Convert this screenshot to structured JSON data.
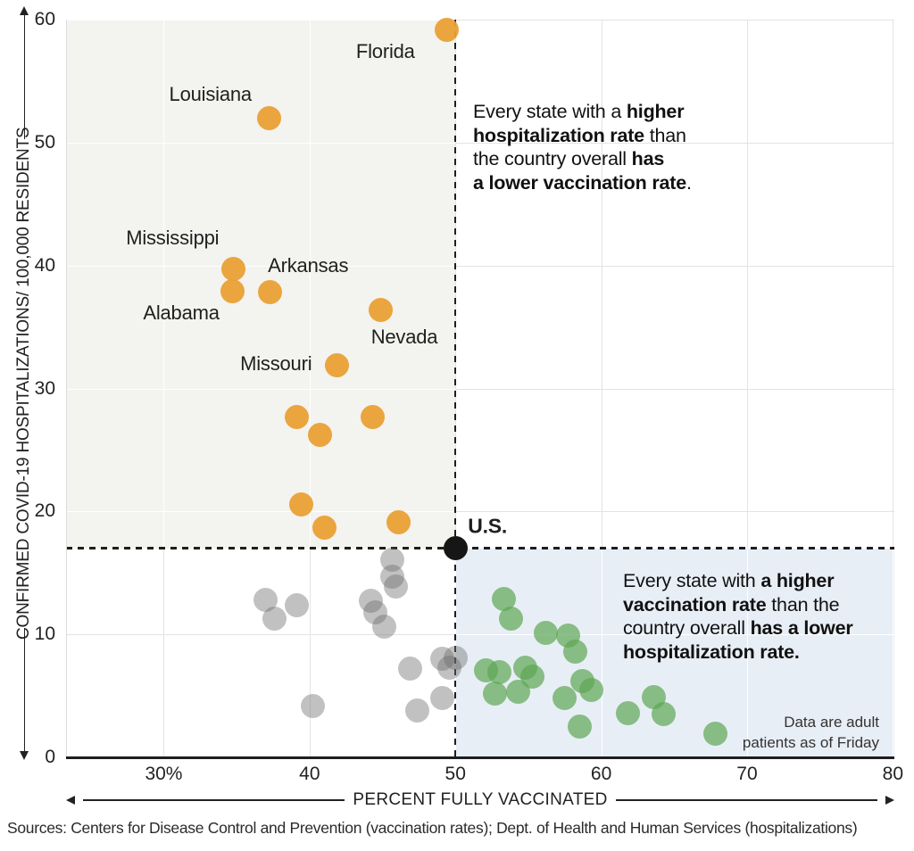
{
  "chart_data": {
    "type": "scatter",
    "xlabel": "PERCENT FULLY VACCINATED",
    "ylabel": "CONFIRMED COVID-19 HOSPITALIZATIONS/ 100,000 RESIDENTS",
    "xlim": [
      23.3,
      80.1
    ],
    "ylim": [
      0,
      60
    ],
    "grid": true,
    "x_ticks": [
      {
        "v": 30,
        "label": "30%"
      },
      {
        "v": 40,
        "label": "40"
      },
      {
        "v": 50,
        "label": "50"
      },
      {
        "v": 60,
        "label": "60"
      },
      {
        "v": 70,
        "label": "70"
      },
      {
        "v": 80,
        "label": "80"
      }
    ],
    "y_ticks": [
      {
        "v": 0,
        "label": "0"
      },
      {
        "v": 10,
        "label": "10"
      },
      {
        "v": 20,
        "label": "20"
      },
      {
        "v": 30,
        "label": "30"
      },
      {
        "v": 40,
        "label": "40"
      },
      {
        "v": 50,
        "label": "50"
      },
      {
        "v": 60,
        "label": "60"
      }
    ],
    "us_reference": {
      "x": 50,
      "y": 17,
      "label": "U.S."
    },
    "colors": {
      "orange": "rgba(233,160,52,0.95)",
      "gray": "rgba(108,108,108,0.42)",
      "green": "rgba(94,166,84,0.70)",
      "us_black": "#161616",
      "quadrant_upper_left": "#f3f3ef",
      "quadrant_lower_right": "#e8eef6",
      "gridline": "#e3e3e3",
      "dashed_line": "#1e1e1e"
    },
    "series": [
      {
        "name": "higher_hospitalization_than_us",
        "color": "rgba(233,160,52,0.95)",
        "points": [
          {
            "x": 49.4,
            "y": 59.2,
            "state": "Florida"
          },
          {
            "x": 37.2,
            "y": 52.0,
            "state": "Louisiana"
          },
          {
            "x": 34.8,
            "y": 39.7,
            "state": "Mississippi"
          },
          {
            "x": 34.7,
            "y": 37.9,
            "state": "Alabama"
          },
          {
            "x": 37.3,
            "y": 37.8,
            "state": "Arkansas"
          },
          {
            "x": 44.9,
            "y": 36.4,
            "state": "Nevada"
          },
          {
            "x": 41.9,
            "y": 31.9,
            "state": "Missouri"
          },
          {
            "x": 39.1,
            "y": 27.7
          },
          {
            "x": 40.7,
            "y": 26.2
          },
          {
            "x": 44.3,
            "y": 27.7
          },
          {
            "x": 39.4,
            "y": 20.6
          },
          {
            "x": 41.0,
            "y": 18.7
          },
          {
            "x": 46.1,
            "y": 19.1
          }
        ]
      },
      {
        "name": "lower_hospitalization_lower_vaccination",
        "color": "rgba(108,108,108,0.42)",
        "points": [
          {
            "x": 37.0,
            "y": 12.8
          },
          {
            "x": 37.6,
            "y": 11.3
          },
          {
            "x": 39.1,
            "y": 12.4
          },
          {
            "x": 44.2,
            "y": 12.7
          },
          {
            "x": 44.5,
            "y": 11.8
          },
          {
            "x": 45.1,
            "y": 10.6
          },
          {
            "x": 45.7,
            "y": 16.1
          },
          {
            "x": 45.7,
            "y": 14.7
          },
          {
            "x": 45.9,
            "y": 13.9
          },
          {
            "x": 46.9,
            "y": 7.2
          },
          {
            "x": 49.1,
            "y": 8.0
          },
          {
            "x": 50.0,
            "y": 8.1
          },
          {
            "x": 49.6,
            "y": 7.3
          },
          {
            "x": 49.1,
            "y": 4.8
          },
          {
            "x": 40.2,
            "y": 4.2
          },
          {
            "x": 47.4,
            "y": 3.8
          }
        ]
      },
      {
        "name": "higher_vaccination_than_us",
        "color": "rgba(94,166,84,0.70)",
        "points": [
          {
            "x": 53.3,
            "y": 12.9
          },
          {
            "x": 53.8,
            "y": 11.3
          },
          {
            "x": 56.2,
            "y": 10.1
          },
          {
            "x": 57.7,
            "y": 9.9
          },
          {
            "x": 58.2,
            "y": 8.6
          },
          {
            "x": 52.1,
            "y": 7.1
          },
          {
            "x": 53.0,
            "y": 6.9
          },
          {
            "x": 54.8,
            "y": 7.3
          },
          {
            "x": 55.3,
            "y": 6.6
          },
          {
            "x": 52.7,
            "y": 5.2
          },
          {
            "x": 54.3,
            "y": 5.3
          },
          {
            "x": 57.5,
            "y": 4.8
          },
          {
            "x": 58.7,
            "y": 6.2
          },
          {
            "x": 59.3,
            "y": 5.5
          },
          {
            "x": 58.5,
            "y": 2.5
          },
          {
            "x": 61.8,
            "y": 3.6
          },
          {
            "x": 63.6,
            "y": 4.9
          },
          {
            "x": 64.3,
            "y": 3.5
          },
          {
            "x": 67.8,
            "y": 1.9
          }
        ]
      }
    ],
    "labels": [
      {
        "text": "Florida",
        "x": 45.2,
        "y": 57.4,
        "bold": false
      },
      {
        "text": "Louisiana",
        "x": 33.2,
        "y": 53.9,
        "bold": false
      },
      {
        "text": "Mississippi",
        "x": 30.6,
        "y": 42.2,
        "bold": false
      },
      {
        "text": "Arkansas",
        "x": 39.9,
        "y": 40.0,
        "bold": false
      },
      {
        "text": "Alabama",
        "x": 31.2,
        "y": 36.1,
        "bold": false
      },
      {
        "text": "Nevada",
        "x": 46.5,
        "y": 34.2,
        "bold": false
      },
      {
        "text": "Missouri",
        "x": 37.7,
        "y": 32.0,
        "bold": false
      },
      {
        "text": "U.S.",
        "x": 52.2,
        "y": 18.8,
        "bold": true
      }
    ],
    "annotations": [
      {
        "id": "ann-top",
        "lines": [
          [
            {
              "t": "Every state with a ",
              "b": false
            },
            {
              "t": "higher",
              "b": true
            }
          ],
          [
            {
              "t": "hospitalization rate",
              "b": true
            },
            {
              "t": " than",
              "b": false
            }
          ],
          [
            {
              "t": "the country overall ",
              "b": false
            },
            {
              "t": "has",
              "b": true
            }
          ],
          [
            {
              "t": "a lower vaccination rate",
              "b": true
            },
            {
              "t": ".",
              "b": false
            }
          ]
        ]
      },
      {
        "id": "ann-bottom",
        "lines": [
          [
            {
              "t": "Every state with ",
              "b": false
            },
            {
              "t": "a higher",
              "b": true
            }
          ],
          [
            {
              "t": "vaccination rate",
              "b": true
            },
            {
              "t": " than the",
              "b": false
            }
          ],
          [
            {
              "t": "country overall ",
              "b": false
            },
            {
              "t": "has a lower",
              "b": true
            }
          ],
          [
            {
              "t": "hospitalization rate.",
              "b": true
            }
          ]
        ]
      }
    ],
    "note": "Data are adult\npatients as of Friday"
  },
  "footer": {
    "sources": "Sources: Centers for Disease Control and Prevention (vaccination rates); Dept. of Health and Human Services (hospitalizations)"
  }
}
